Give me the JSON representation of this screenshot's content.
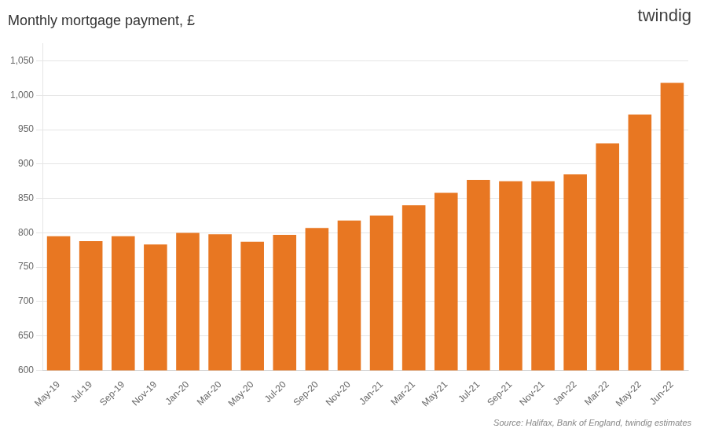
{
  "chart_data": {
    "type": "bar",
    "title": "Monthly mortgage payment, £",
    "categories": [
      "May-19",
      "Jul-19",
      "Sep-19",
      "Nov-19",
      "Jan-20",
      "Mar-20",
      "May-20",
      "Jul-20",
      "Sep-20",
      "Nov-20",
      "Jan-21",
      "Mar-21",
      "May-21",
      "Jul-21",
      "Sep-21",
      "Nov-21",
      "Jan-22",
      "Mar-22",
      "May-22",
      "Jun-22"
    ],
    "values": [
      795,
      788,
      795,
      783,
      800,
      798,
      787,
      797,
      807,
      818,
      825,
      840,
      858,
      877,
      875,
      875,
      885,
      930,
      972,
      1018
    ],
    "color": "#E87722",
    "ylim": [
      600,
      1075
    ],
    "yticks": [
      600,
      650,
      700,
      750,
      800,
      850,
      900,
      950,
      {
        "value": 1000,
        "label": "1,000"
      },
      {
        "value": 1050,
        "label": "1,050"
      }
    ],
    "grid": "y",
    "annotations": [
      "twindig",
      "Source: Halifax, Bank of England, twindig estimates"
    ]
  }
}
